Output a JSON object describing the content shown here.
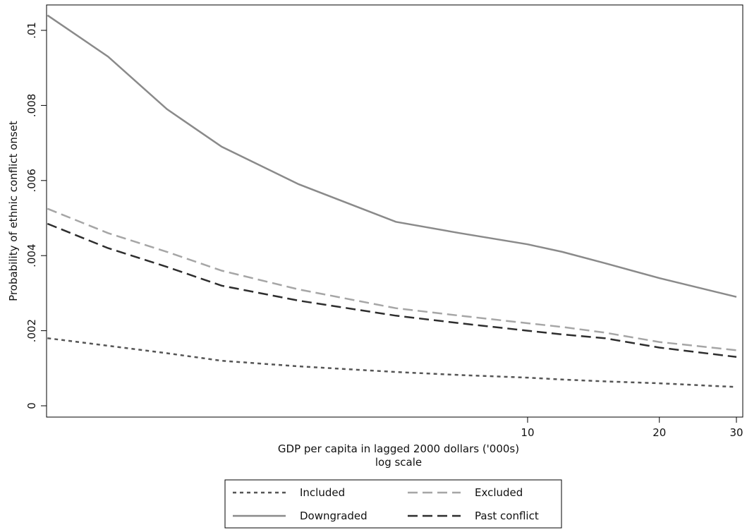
{
  "chart_data": {
    "type": "line",
    "title": "",
    "xlabel": "GDP per capita in lagged 2000 dollars ('000s)",
    "xlabel_note": "log scale",
    "ylabel": "Probability of ethnic conflict onset",
    "x_scale": "log",
    "xlim": [
      0.8,
      31
    ],
    "ylim": [
      -0.0003,
      0.0105
    ],
    "x_ticks": [
      10,
      20,
      30
    ],
    "x_tick_labels": [
      "10",
      "20",
      "30"
    ],
    "y_ticks": [
      0,
      0.002,
      0.004,
      0.006,
      0.008,
      0.01
    ],
    "y_tick_labels": [
      "0",
      ".002",
      ".004",
      ".006",
      ".008",
      ".01"
    ],
    "grid": false,
    "legend_position": "bottom",
    "x": [
      0.8,
      1.1,
      1.5,
      2,
      3,
      5,
      7,
      10,
      12,
      15,
      20,
      30
    ],
    "series": [
      {
        "name": "Included",
        "color": "#555555",
        "style": "short-dash",
        "values": [
          0.0018,
          0.0016,
          0.0014,
          0.0012,
          0.00105,
          0.0009,
          0.00082,
          0.00075,
          0.0007,
          0.00065,
          0.0006,
          0.0005
        ]
      },
      {
        "name": "Excluded",
        "color": "#a6a6a6",
        "style": "long-dash",
        "values": [
          0.00525,
          0.0046,
          0.0041,
          0.0036,
          0.0031,
          0.0026,
          0.0024,
          0.0022,
          0.0021,
          0.00195,
          0.0017,
          0.00148
        ]
      },
      {
        "name": "Downgraded",
        "color": "#8a8a8a",
        "style": "solid",
        "values": [
          0.0104,
          0.0093,
          0.0079,
          0.0069,
          0.0059,
          0.0049,
          0.0046,
          0.0043,
          0.0041,
          0.0038,
          0.0034,
          0.0029
        ]
      },
      {
        "name": "Past conflict",
        "color": "#2e2e2e",
        "style": "long-dash",
        "values": [
          0.00485,
          0.0042,
          0.0037,
          0.0032,
          0.0028,
          0.0024,
          0.0022,
          0.002,
          0.0019,
          0.0018,
          0.00155,
          0.0013
        ]
      }
    ]
  }
}
